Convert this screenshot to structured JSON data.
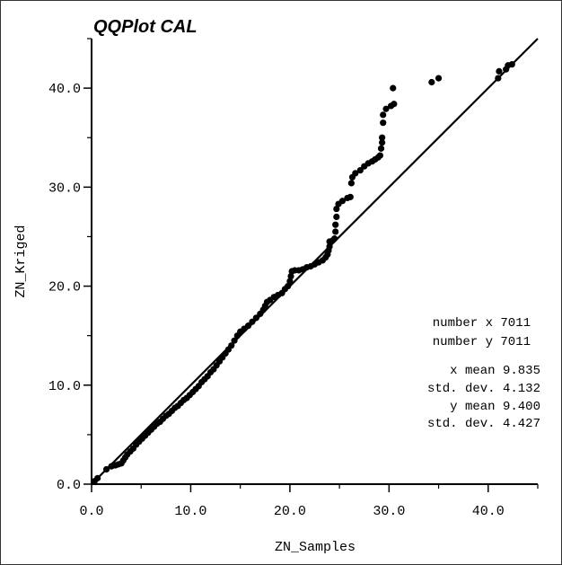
{
  "chart_data": {
    "type": "scatter",
    "title": "QQPlot CAL",
    "xlabel": "ZN_Samples",
    "ylabel": "ZN_Kriged",
    "xlim": [
      0,
      45
    ],
    "ylim": [
      0,
      45
    ],
    "x_ticks": [
      0,
      10,
      20,
      30,
      40
    ],
    "y_ticks": [
      0,
      10,
      20,
      30,
      40
    ],
    "x_tick_labels": [
      "0.0",
      "10.0",
      "20.0",
      "30.0",
      "40.0"
    ],
    "y_tick_labels": [
      "0.0",
      "10.0",
      "20.0",
      "30.0",
      "40.0"
    ],
    "reference_line": "y = x",
    "stats": {
      "number_x": "number x 7011",
      "number_y": "number y 7011",
      "x_mean": "x mean 9.835",
      "x_std": "std. dev. 4.132",
      "y_mean": "y mean 9.400",
      "y_std": "std. dev. 4.427"
    },
    "points": [
      [
        0.3,
        0.3
      ],
      [
        0.6,
        0.6
      ],
      [
        1.5,
        1.5
      ],
      [
        2.0,
        1.8
      ],
      [
        2.4,
        1.9
      ],
      [
        2.7,
        2.0
      ],
      [
        3.0,
        2.1
      ],
      [
        3.2,
        2.4
      ],
      [
        3.4,
        2.7
      ],
      [
        3.6,
        3.0
      ],
      [
        3.9,
        3.3
      ],
      [
        4.2,
        3.6
      ],
      [
        4.5,
        4.0
      ],
      [
        4.8,
        4.3
      ],
      [
        5.1,
        4.6
      ],
      [
        5.4,
        4.9
      ],
      [
        5.7,
        5.2
      ],
      [
        6.0,
        5.5
      ],
      [
        6.3,
        5.8
      ],
      [
        6.6,
        6.1
      ],
      [
        6.9,
        6.3
      ],
      [
        7.2,
        6.6
      ],
      [
        7.5,
        6.9
      ],
      [
        7.8,
        7.1
      ],
      [
        8.1,
        7.4
      ],
      [
        8.4,
        7.7
      ],
      [
        8.7,
        7.9
      ],
      [
        9.0,
        8.2
      ],
      [
        9.3,
        8.5
      ],
      [
        9.6,
        8.7
      ],
      [
        9.9,
        9.0
      ],
      [
        10.2,
        9.3
      ],
      [
        10.5,
        9.6
      ],
      [
        10.8,
        9.9
      ],
      [
        11.1,
        10.3
      ],
      [
        11.4,
        10.6
      ],
      [
        11.7,
        10.9
      ],
      [
        12.0,
        11.3
      ],
      [
        12.3,
        11.6
      ],
      [
        12.6,
        12.0
      ],
      [
        12.9,
        12.4
      ],
      [
        13.2,
        12.8
      ],
      [
        13.5,
        13.2
      ],
      [
        13.8,
        13.6
      ],
      [
        14.1,
        14.0
      ],
      [
        14.4,
        14.5
      ],
      [
        14.7,
        15.0
      ],
      [
        15.0,
        15.4
      ],
      [
        15.4,
        15.7
      ],
      [
        15.8,
        16.0
      ],
      [
        16.2,
        16.4
      ],
      [
        16.6,
        16.8
      ],
      [
        17.0,
        17.2
      ],
      [
        17.3,
        17.6
      ],
      [
        17.5,
        18.0
      ],
      [
        17.7,
        18.4
      ],
      [
        18.0,
        18.6
      ],
      [
        18.4,
        18.9
      ],
      [
        18.8,
        19.1
      ],
      [
        19.2,
        19.3
      ],
      [
        19.5,
        19.7
      ],
      [
        19.8,
        20.0
      ],
      [
        20.0,
        20.5
      ],
      [
        20.1,
        21.0
      ],
      [
        20.2,
        21.5
      ],
      [
        20.5,
        21.6
      ],
      [
        20.9,
        21.6
      ],
      [
        21.3,
        21.7
      ],
      [
        21.7,
        21.9
      ],
      [
        22.1,
        22.0
      ],
      [
        22.5,
        22.2
      ],
      [
        22.9,
        22.4
      ],
      [
        23.3,
        22.6
      ],
      [
        23.6,
        22.9
      ],
      [
        23.8,
        23.2
      ],
      [
        23.9,
        23.6
      ],
      [
        24.0,
        24.0
      ],
      [
        24.0,
        24.5
      ],
      [
        24.3,
        24.6
      ],
      [
        24.5,
        24.8
      ],
      [
        24.6,
        25.5
      ],
      [
        24.6,
        26.2
      ],
      [
        24.7,
        27.0
      ],
      [
        24.7,
        27.8
      ],
      [
        24.9,
        28.3
      ],
      [
        25.3,
        28.6
      ],
      [
        25.8,
        28.9
      ],
      [
        26.1,
        29.0
      ],
      [
        26.2,
        30.4
      ],
      [
        26.3,
        31.0
      ],
      [
        26.6,
        31.4
      ],
      [
        27.1,
        31.7
      ],
      [
        27.5,
        32.1
      ],
      [
        27.9,
        32.4
      ],
      [
        28.3,
        32.6
      ],
      [
        28.6,
        32.8
      ],
      [
        28.9,
        33.0
      ],
      [
        29.1,
        33.2
      ],
      [
        29.2,
        33.9
      ],
      [
        29.3,
        34.5
      ],
      [
        29.3,
        35.0
      ],
      [
        29.4,
        36.5
      ],
      [
        29.4,
        37.3
      ],
      [
        29.7,
        37.9
      ],
      [
        30.2,
        38.2
      ],
      [
        30.5,
        38.4
      ],
      [
        30.4,
        40.0
      ],
      [
        34.3,
        40.6
      ],
      [
        35.0,
        41.0
      ],
      [
        41.0,
        41.0
      ],
      [
        41.1,
        41.7
      ],
      [
        41.8,
        41.9
      ],
      [
        42.0,
        42.3
      ],
      [
        42.4,
        42.4
      ]
    ]
  }
}
